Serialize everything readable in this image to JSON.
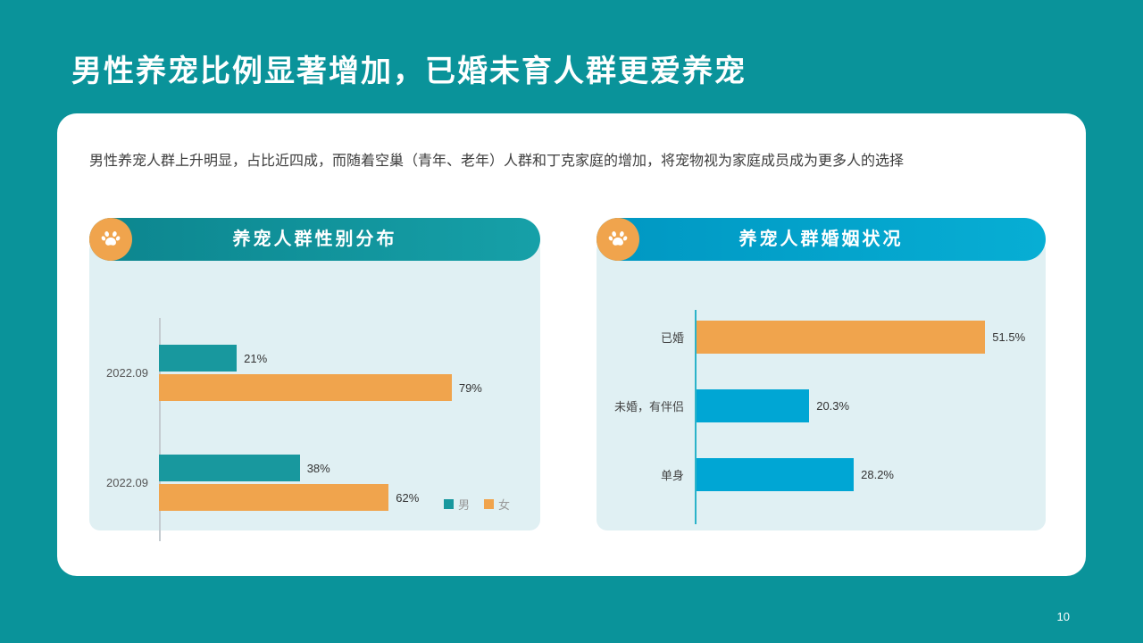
{
  "slide": {
    "title": "男性养宠比例显著增加，已婚未育人群更爱养宠",
    "subtitle": "男性养宠人群上升明显，占比近四成，而随着空巢（青年、老年）人群和丁克家庭的增加，将宠物视为家庭成员成为更多人的选择",
    "page_number": "10"
  },
  "colors": {
    "background": "#0a939a",
    "card": "#ffffff",
    "panel_bg": "#e0f0f3",
    "header_left": "#0f929b",
    "header_right": "#00a3cc",
    "accent_orange": "#f0a44d",
    "teal_bar": "#18989e",
    "blue_bar": "#00a6d4",
    "axis_gray": "#c4cbd0",
    "axis_teal": "#2bb3c9"
  },
  "chart_data": [
    {
      "type": "bar",
      "orientation": "horizontal",
      "title": "养宠人群性别分布",
      "icon": "paw-icon",
      "categories": [
        "2022.09",
        "2022.09"
      ],
      "series": [
        {
          "name": "男",
          "color": "#18989e",
          "values": [
            21,
            38
          ],
          "labels": [
            "21%",
            "38%"
          ]
        },
        {
          "name": "女",
          "color": "#f0a44d",
          "values": [
            79,
            62
          ],
          "labels": [
            "79%",
            "62%"
          ]
        }
      ],
      "xlim": [
        0,
        100
      ],
      "grid": false,
      "legend_position": "bottom-right"
    },
    {
      "type": "bar",
      "orientation": "horizontal",
      "title": "养宠人群婚姻状况",
      "icon": "paw-icon",
      "categories": [
        "已婚",
        "未婚，有伴侣",
        "单身"
      ],
      "values": [
        51.5,
        20.3,
        28.2
      ],
      "labels": [
        "51.5%",
        "20.3%",
        "28.2%"
      ],
      "colors": [
        "#f0a44d",
        "#00a6d4",
        "#00a6d4"
      ],
      "xlim": [
        0,
        60
      ],
      "grid": false,
      "legend_position": "none"
    }
  ]
}
